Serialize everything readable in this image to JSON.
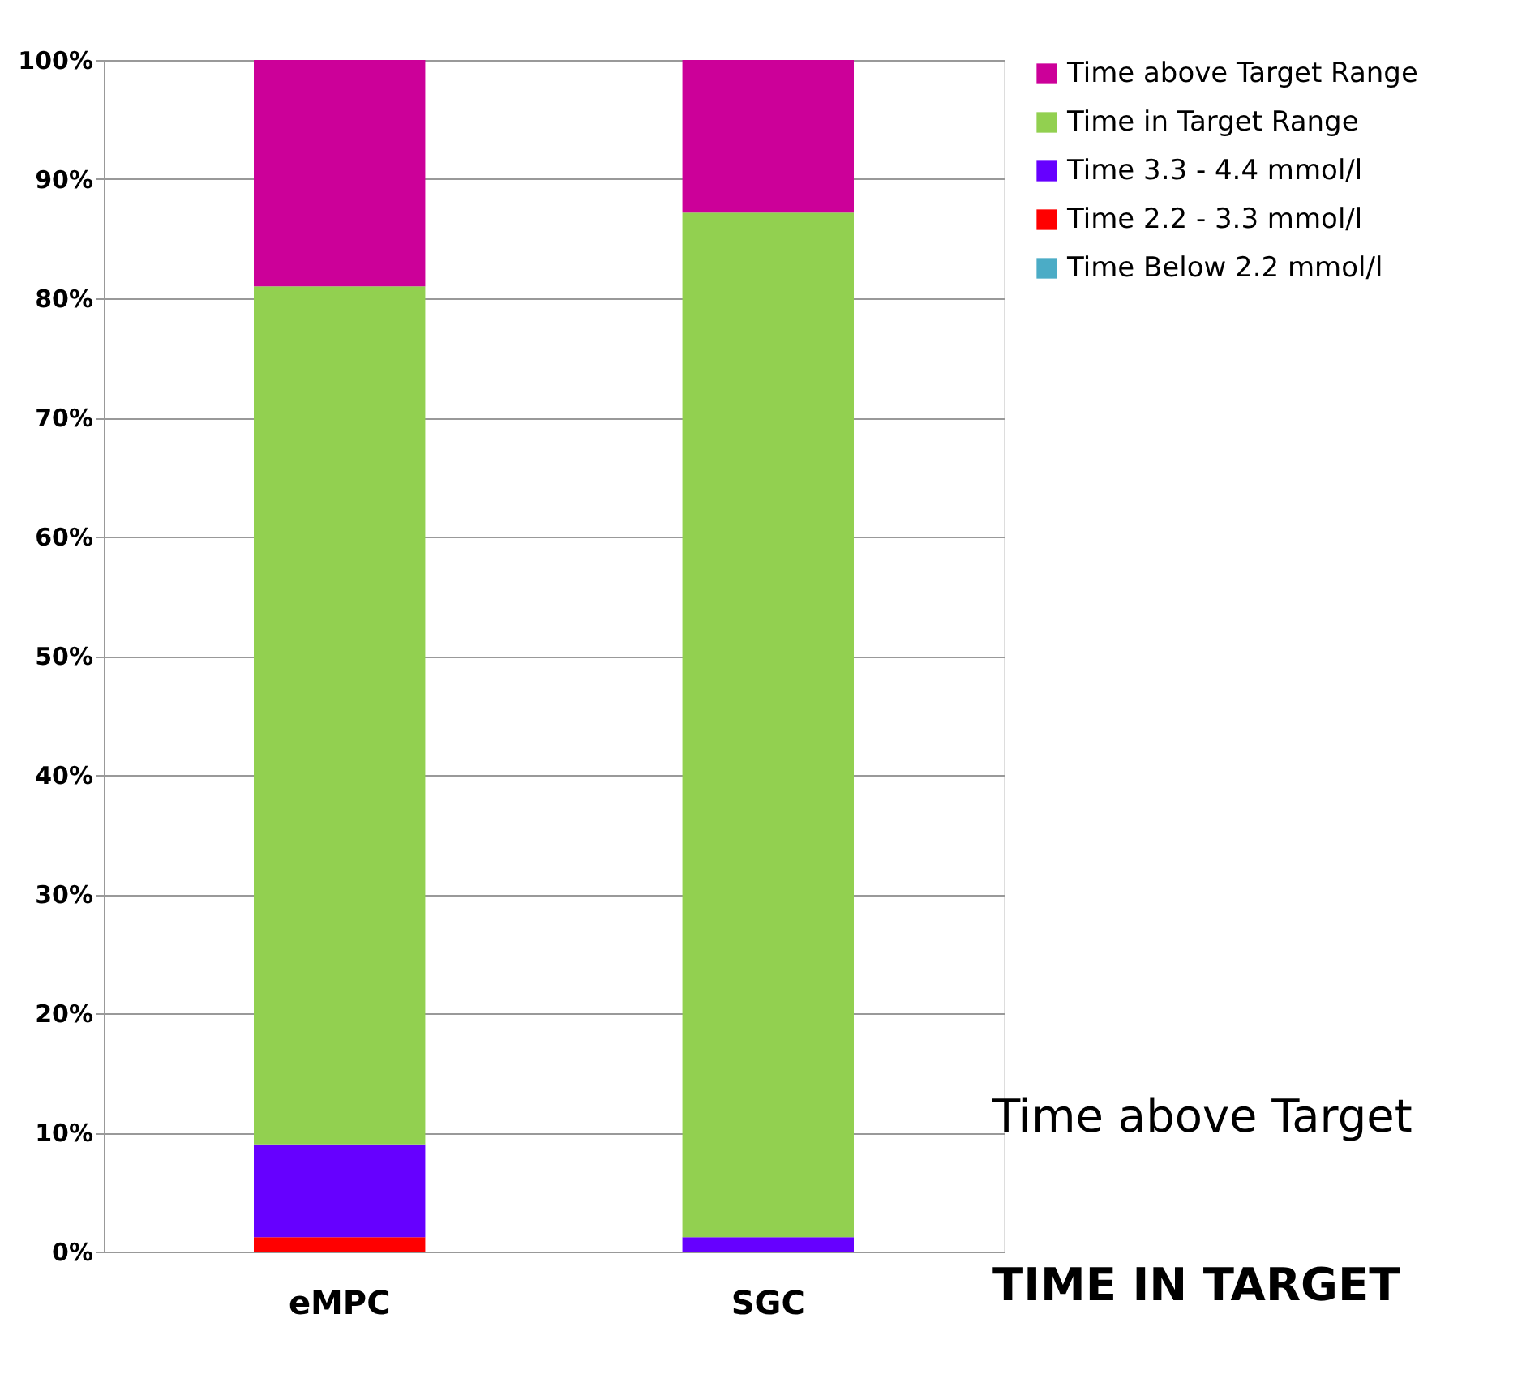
{
  "chart_data": {
    "type": "bar",
    "stacked": true,
    "categories": [
      "eMPC",
      "SGC"
    ],
    "series": [
      {
        "name": "Time Below 2.2 mmol/l",
        "color": "#4bacc6",
        "values": [
          0,
          0
        ]
      },
      {
        "name": "Time 2.2 - 3.3 mmol/l",
        "color": "#ff0000",
        "values": [
          1.2,
          0
        ]
      },
      {
        "name": "Time 3.3 - 4.4 mmol/l",
        "color": "#6600ff",
        "values": [
          7.8,
          1.2
        ]
      },
      {
        "name": "Time in Target Range",
        "color": "#92d050",
        "values": [
          72,
          86
        ]
      },
      {
        "name": "Time above Target Range",
        "color": "#cc0099",
        "values": [
          19,
          12.8
        ]
      }
    ],
    "ylim": [
      0,
      100
    ],
    "yticks": [
      {
        "value": 0,
        "label": "0%"
      },
      {
        "value": 10,
        "label": "10%"
      },
      {
        "value": 20,
        "label": "20%"
      },
      {
        "value": 30,
        "label": "30%"
      },
      {
        "value": 40,
        "label": "40%"
      },
      {
        "value": 50,
        "label": "50%"
      },
      {
        "value": 60,
        "label": "60%"
      },
      {
        "value": 70,
        "label": "70%"
      },
      {
        "value": 80,
        "label": "80%"
      },
      {
        "value": 90,
        "label": "90%"
      },
      {
        "value": 100,
        "label": "100%"
      }
    ],
    "grid": "y",
    "legend": "top right",
    "annotations": [
      "Time above Target",
      "TIME IN TARGET"
    ]
  }
}
